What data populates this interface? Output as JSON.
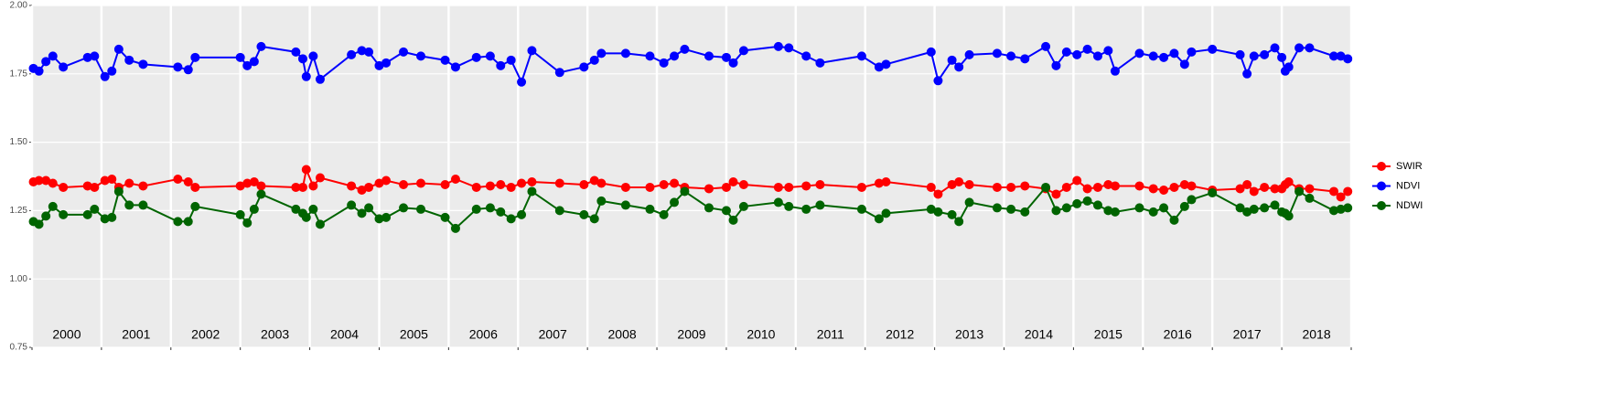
{
  "chart_data": {
    "type": "line",
    "x": [
      2000.02,
      2000.1,
      2000.2,
      2000.3,
      2000.45,
      2000.8,
      2000.9,
      2001.05,
      2001.15,
      2001.25,
      2001.4,
      2001.6,
      2002.1,
      2002.25,
      2002.35,
      2003.0,
      2003.1,
      2003.2,
      2003.3,
      2003.8,
      2003.9,
      2003.95,
      2004.05,
      2004.15,
      2004.6,
      2004.75,
      2004.85,
      2005.0,
      2005.1,
      2005.35,
      2005.6,
      2005.95,
      2006.1,
      2006.4,
      2006.6,
      2006.75,
      2006.9,
      2007.05,
      2007.2,
      2007.6,
      2007.95,
      2008.1,
      2008.2,
      2008.55,
      2008.9,
      2009.1,
      2009.25,
      2009.4,
      2009.75,
      2010.0,
      2010.1,
      2010.25,
      2010.75,
      2010.9,
      2011.15,
      2011.35,
      2011.95,
      2012.2,
      2012.3,
      2012.95,
      2013.05,
      2013.25,
      2013.35,
      2013.5,
      2013.9,
      2014.1,
      2014.3,
      2014.6,
      2014.75,
      2014.9,
      2015.05,
      2015.2,
      2015.35,
      2015.5,
      2015.6,
      2015.95,
      2016.15,
      2016.3,
      2016.45,
      2016.6,
      2016.7,
      2017.0,
      2017.4,
      2017.5,
      2017.6,
      2017.75,
      2017.9,
      2018.0,
      2018.05,
      2018.1,
      2018.25,
      2018.4,
      2018.75,
      2018.85,
      2018.95
    ],
    "series": [
      {
        "name": "SWIR",
        "color": "#ff0000",
        "values": [
          1.355,
          1.36,
          1.36,
          1.35,
          1.335,
          1.34,
          1.335,
          1.36,
          1.365,
          1.335,
          1.35,
          1.34,
          1.365,
          1.355,
          1.335,
          1.34,
          1.35,
          1.355,
          1.34,
          1.335,
          1.335,
          1.4,
          1.34,
          1.37,
          1.34,
          1.325,
          1.335,
          1.35,
          1.36,
          1.345,
          1.35,
          1.345,
          1.365,
          1.335,
          1.34,
          1.345,
          1.335,
          1.35,
          1.355,
          1.35,
          1.345,
          1.36,
          1.35,
          1.335,
          1.335,
          1.345,
          1.35,
          1.335,
          1.33,
          1.335,
          1.355,
          1.345,
          1.335,
          1.335,
          1.34,
          1.345,
          1.335,
          1.35,
          1.355,
          1.335,
          1.31,
          1.345,
          1.355,
          1.345,
          1.335,
          1.335,
          1.34,
          1.33,
          1.31,
          1.335,
          1.36,
          1.33,
          1.335,
          1.345,
          1.34,
          1.34,
          1.33,
          1.325,
          1.335,
          1.345,
          1.34,
          1.325,
          1.33,
          1.345,
          1.32,
          1.335,
          1.33,
          1.33,
          1.345,
          1.355,
          1.33,
          1.33,
          1.32,
          1.3,
          1.32
        ]
      },
      {
        "name": "NDVI",
        "color": "#0000ff",
        "values": [
          1.77,
          1.76,
          1.795,
          1.815,
          1.775,
          1.81,
          1.815,
          1.74,
          1.76,
          1.84,
          1.8,
          1.785,
          1.775,
          1.765,
          1.81,
          1.81,
          1.78,
          1.795,
          1.85,
          1.83,
          1.805,
          1.74,
          1.815,
          1.73,
          1.82,
          1.835,
          1.83,
          1.78,
          1.79,
          1.83,
          1.815,
          1.8,
          1.775,
          1.81,
          1.815,
          1.78,
          1.8,
          1.72,
          1.835,
          1.755,
          1.775,
          1.8,
          1.825,
          1.825,
          1.815,
          1.79,
          1.815,
          1.84,
          1.815,
          1.81,
          1.79,
          1.835,
          1.85,
          1.845,
          1.815,
          1.79,
          1.815,
          1.775,
          1.785,
          1.83,
          1.725,
          1.8,
          1.775,
          1.82,
          1.825,
          1.815,
          1.805,
          1.85,
          1.78,
          1.83,
          1.82,
          1.84,
          1.815,
          1.835,
          1.76,
          1.825,
          1.815,
          1.81,
          1.825,
          1.785,
          1.83,
          1.84,
          1.82,
          1.75,
          1.815,
          1.82,
          1.845,
          1.81,
          1.76,
          1.775,
          1.845,
          1.845,
          1.815,
          1.815,
          1.805
        ]
      },
      {
        "name": "NDWI",
        "color": "#006400",
        "values": [
          1.21,
          1.2,
          1.23,
          1.265,
          1.235,
          1.235,
          1.255,
          1.22,
          1.225,
          1.32,
          1.27,
          1.27,
          1.21,
          1.21,
          1.265,
          1.235,
          1.205,
          1.255,
          1.31,
          1.255,
          1.24,
          1.225,
          1.255,
          1.2,
          1.27,
          1.24,
          1.26,
          1.22,
          1.225,
          1.26,
          1.255,
          1.225,
          1.185,
          1.255,
          1.26,
          1.245,
          1.22,
          1.235,
          1.32,
          1.25,
          1.235,
          1.22,
          1.285,
          1.27,
          1.255,
          1.235,
          1.28,
          1.32,
          1.26,
          1.25,
          1.215,
          1.265,
          1.28,
          1.265,
          1.255,
          1.27,
          1.255,
          1.22,
          1.24,
          1.255,
          1.245,
          1.235,
          1.21,
          1.28,
          1.26,
          1.255,
          1.245,
          1.335,
          1.25,
          1.26,
          1.275,
          1.285,
          1.27,
          1.25,
          1.245,
          1.26,
          1.245,
          1.26,
          1.215,
          1.265,
          1.29,
          1.315,
          1.26,
          1.245,
          1.255,
          1.26,
          1.27,
          1.245,
          1.24,
          1.23,
          1.32,
          1.295,
          1.25,
          1.255,
          1.26
        ]
      }
    ],
    "xlim": [
      2000,
      2019
    ],
    "xticks": [
      2000,
      2001,
      2002,
      2003,
      2004,
      2005,
      2006,
      2007,
      2008,
      2009,
      2010,
      2011,
      2012,
      2013,
      2014,
      2015,
      2016,
      2017,
      2018,
      2019
    ],
    "year_labels": [
      "2000",
      "2001",
      "2002",
      "2003",
      "2004",
      "2005",
      "2006",
      "2007",
      "2008",
      "2009",
      "2010",
      "2011",
      "2012",
      "2013",
      "2014",
      "2015",
      "2016",
      "2017",
      "2018"
    ],
    "ylim": [
      0.75,
      2.0
    ],
    "yticks": [
      {
        "value": 0.75,
        "label": "0.75"
      },
      {
        "value": 1.0,
        "label": "1.00"
      },
      {
        "value": 1.25,
        "label": "1.25"
      },
      {
        "value": 1.5,
        "label": "1.50"
      },
      {
        "value": 1.75,
        "label": "1.75"
      },
      {
        "value": 2.0,
        "label": "2.00"
      }
    ],
    "grid": true,
    "legend": "right"
  }
}
